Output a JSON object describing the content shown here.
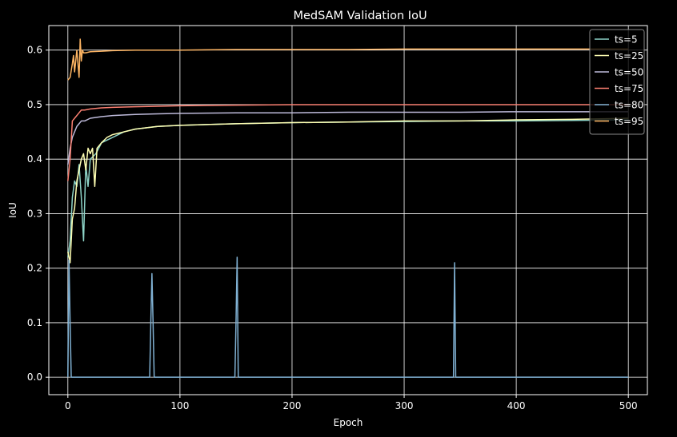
{
  "chart_data": {
    "type": "line",
    "title": "MedSAM Validation IoU",
    "xlabel": "Epoch",
    "ylabel": "IoU",
    "xlim": [
      -17,
      517
    ],
    "ylim": [
      -0.032,
      0.645
    ],
    "xticks": [
      0,
      100,
      200,
      300,
      400,
      500
    ],
    "yticks": [
      0.0,
      0.1,
      0.2,
      0.3,
      0.4,
      0.5,
      0.6
    ],
    "grid": true,
    "legend_position": "top-right",
    "background": "#000000",
    "series": [
      {
        "name": "ts=5",
        "color": "#8dd3c7",
        "x": [
          0,
          2,
          4,
          6,
          8,
          10,
          12,
          14,
          16,
          18,
          20,
          25,
          30,
          40,
          50,
          60,
          80,
          100,
          150,
          200,
          250,
          300,
          350,
          400,
          450,
          500
        ],
        "values": [
          0.22,
          0.25,
          0.33,
          0.36,
          0.35,
          0.39,
          0.33,
          0.25,
          0.39,
          0.35,
          0.4,
          0.41,
          0.43,
          0.44,
          0.45,
          0.455,
          0.46,
          0.462,
          0.465,
          0.467,
          0.468,
          0.469,
          0.47,
          0.47,
          0.471,
          0.472
        ]
      },
      {
        "name": "ts=25",
        "color": "#ffffb3",
        "x": [
          0,
          2,
          4,
          6,
          8,
          10,
          12,
          14,
          16,
          18,
          20,
          22,
          24,
          26,
          30,
          35,
          40,
          50,
          60,
          80,
          100,
          150,
          200,
          250,
          300,
          350,
          400,
          450,
          500
        ],
        "values": [
          0.23,
          0.21,
          0.29,
          0.31,
          0.36,
          0.38,
          0.4,
          0.41,
          0.38,
          0.42,
          0.41,
          0.42,
          0.35,
          0.42,
          0.43,
          0.44,
          0.445,
          0.45,
          0.455,
          0.46,
          0.462,
          0.465,
          0.467,
          0.468,
          0.47,
          0.47,
          0.472,
          0.473,
          0.475
        ]
      },
      {
        "name": "ts=50",
        "color": "#bebada",
        "x": [
          0,
          2,
          4,
          6,
          8,
          10,
          12,
          15,
          20,
          30,
          40,
          60,
          80,
          100,
          150,
          200,
          250,
          300,
          350,
          400,
          450,
          500
        ],
        "values": [
          0.39,
          0.42,
          0.44,
          0.45,
          0.46,
          0.465,
          0.47,
          0.47,
          0.475,
          0.478,
          0.48,
          0.482,
          0.483,
          0.484,
          0.485,
          0.485,
          0.486,
          0.486,
          0.486,
          0.487,
          0.487,
          0.487
        ]
      },
      {
        "name": "ts=75",
        "color": "#fb8072",
        "x": [
          0,
          2,
          4,
          6,
          8,
          10,
          12,
          15,
          20,
          30,
          40,
          60,
          80,
          100,
          150,
          200,
          250,
          300,
          350,
          400,
          450,
          500
        ],
        "values": [
          0.36,
          0.4,
          0.47,
          0.475,
          0.48,
          0.485,
          0.49,
          0.49,
          0.492,
          0.494,
          0.495,
          0.496,
          0.497,
          0.498,
          0.499,
          0.5,
          0.5,
          0.5,
          0.5,
          0.5,
          0.5,
          0.5
        ]
      },
      {
        "name": "ts=80",
        "color": "#80b1d3",
        "x": [
          0,
          1,
          2,
          3,
          73,
          74,
          75,
          76,
          77,
          149,
          150,
          151,
          152,
          343,
          344,
          345,
          346,
          347,
          500
        ],
        "values": [
          0.0,
          0.215,
          0.1,
          0.0,
          0.0,
          0.1,
          0.19,
          0.1,
          0.0,
          0.0,
          0.1,
          0.22,
          0.0,
          0.0,
          0.0,
          0.21,
          0.0,
          0.0,
          0.0
        ]
      },
      {
        "name": "ts=95",
        "color": "#fdb462",
        "x": [
          0,
          2,
          4,
          5,
          6,
          8,
          10,
          11,
          12,
          13,
          14,
          16,
          20,
          30,
          40,
          60,
          80,
          100,
          150,
          200,
          250,
          300,
          350,
          400,
          450,
          500
        ],
        "values": [
          0.545,
          0.55,
          0.575,
          0.59,
          0.56,
          0.6,
          0.55,
          0.62,
          0.58,
          0.6,
          0.595,
          0.595,
          0.597,
          0.598,
          0.599,
          0.6,
          0.6,
          0.6,
          0.601,
          0.601,
          0.601,
          0.602,
          0.602,
          0.602,
          0.602,
          0.602
        ]
      }
    ]
  }
}
